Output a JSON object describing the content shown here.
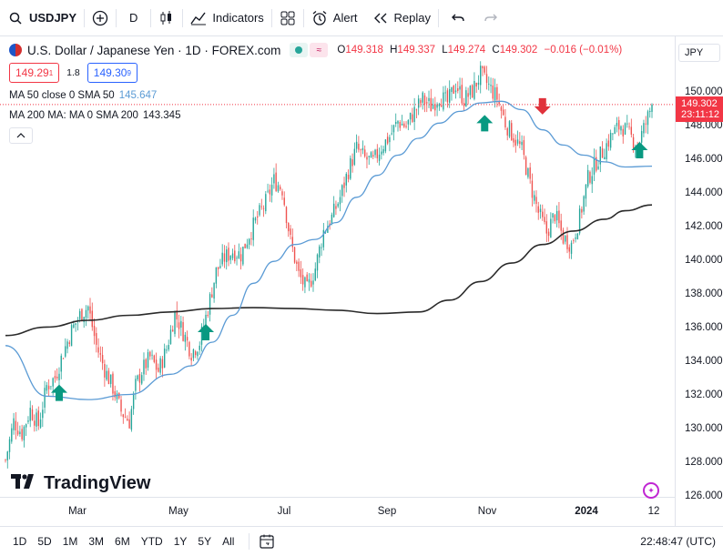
{
  "toolbar": {
    "symbol": "USDJPY",
    "interval": "D",
    "indicators_label": "Indicators",
    "alert_label": "Alert",
    "replay_label": "Replay"
  },
  "legend": {
    "title": "U.S. Dollar / Japanese Yen · 1D · FOREX.com",
    "open_label": "O",
    "open": "149.318",
    "high_label": "H",
    "high": "149.337",
    "low_label": "L",
    "low": "149.274",
    "close_label": "C",
    "close": "149.302",
    "change": "−0.016 (−0.01%)",
    "bid": "149.29",
    "bid_sup": "1",
    "spread": "1.8",
    "ask": "149.30",
    "ask_sup": "9",
    "ma50_label": "MA 50 close 0 SMA 50",
    "ma50_value": "145.647",
    "ma200_label": "MA 200 MA: MA 0 SMA 200",
    "ma200_value": "143.345"
  },
  "price_scale": {
    "currency": "JPY",
    "current_price": "149.302",
    "countdown": "23:11:12"
  },
  "time_scale": {
    "labels": [
      "Mar",
      "May",
      "Jul",
      "Sep",
      "Nov",
      "2024",
      "12"
    ]
  },
  "bottom_bar": {
    "ranges": [
      "1D",
      "5D",
      "1M",
      "3M",
      "6M",
      "YTD",
      "1Y",
      "5Y",
      "All"
    ],
    "clock": "22:48:47 (UTC)"
  },
  "branding": {
    "logo_text": "TradingView"
  },
  "colors": {
    "up": "#26a69a",
    "down": "#ef5350",
    "ma50": "#5b9bd5",
    "ma200": "#2a2a2a",
    "buy_arrow": "#089981",
    "sell_arrow": "#e0323b"
  },
  "chart_data": {
    "type": "candlestick",
    "symbol": "USDJPY",
    "y_ticks": [
      126,
      128,
      130,
      132,
      134,
      136,
      138,
      140,
      142,
      144,
      146,
      148,
      150
    ],
    "ylim": [
      125.5,
      152
    ],
    "x_labels": [
      "Mar",
      "May",
      "Jul",
      "Sep",
      "Nov",
      "2024",
      "12"
    ],
    "grid": false,
    "close_path": [
      [
        0,
        128.2
      ],
      [
        4,
        130.5
      ],
      [
        8,
        129.8
      ],
      [
        12,
        131.2
      ],
      [
        16,
        130.3
      ],
      [
        20,
        132.6
      ],
      [
        24,
        133.1
      ],
      [
        28,
        134.6
      ],
      [
        32,
        135.9
      ],
      [
        36,
        136.8
      ],
      [
        40,
        137.3
      ],
      [
        44,
        135.0
      ],
      [
        48,
        133.6
      ],
      [
        52,
        132.5
      ],
      [
        56,
        131.1
      ],
      [
        60,
        130.5
      ],
      [
        63,
        132.6
      ],
      [
        66,
        133.5
      ],
      [
        70,
        134.3
      ],
      [
        74,
        133.5
      ],
      [
        78,
        134.8
      ],
      [
        82,
        136.9
      ],
      [
        86,
        135.8
      ],
      [
        90,
        134.6
      ],
      [
        94,
        135.2
      ],
      [
        98,
        137.2
      ],
      [
        102,
        139.4
      ],
      [
        106,
        140.2
      ],
      [
        110,
        140.6
      ],
      [
        114,
        140.4
      ],
      [
        118,
        141.6
      ],
      [
        122,
        142.6
      ],
      [
        126,
        143.5
      ],
      [
        130,
        144.8
      ],
      [
        134,
        144.3
      ],
      [
        138,
        141.2
      ],
      [
        142,
        139.2
      ],
      [
        146,
        138.3
      ],
      [
        150,
        139.6
      ],
      [
        154,
        141.8
      ],
      [
        158,
        142.6
      ],
      [
        162,
        143.8
      ],
      [
        166,
        145.4
      ],
      [
        170,
        146.7
      ],
      [
        174,
        146.1
      ],
      [
        178,
        145.9
      ],
      [
        182,
        146.8
      ],
      [
        186,
        147.4
      ],
      [
        190,
        148.3
      ],
      [
        194,
        148.0
      ],
      [
        198,
        148.9
      ],
      [
        202,
        149.6
      ],
      [
        206,
        149.2
      ],
      [
        210,
        149.8
      ],
      [
        214,
        149.4
      ],
      [
        218,
        150.5
      ],
      [
        222,
        149.6
      ],
      [
        226,
        150.1
      ],
      [
        230,
        151.1
      ],
      [
        234,
        150.4
      ],
      [
        238,
        149.7
      ],
      [
        242,
        148.2
      ],
      [
        246,
        147.4
      ],
      [
        250,
        146.6
      ],
      [
        254,
        144.6
      ],
      [
        258,
        142.9
      ],
      [
        262,
        141.7
      ],
      [
        266,
        142.8
      ],
      [
        270,
        141.4
      ],
      [
        274,
        141.0
      ],
      [
        278,
        142.6
      ],
      [
        282,
        144.9
      ],
      [
        286,
        145.9
      ],
      [
        290,
        146.7
      ],
      [
        294,
        147.6
      ],
      [
        298,
        148.1
      ],
      [
        302,
        147.5
      ],
      [
        306,
        146.9
      ],
      [
        310,
        148.2
      ],
      [
        313,
        149.3
      ]
    ],
    "n_candles": 314,
    "ma50_path": [
      [
        0,
        135.0
      ],
      [
        20,
        132.0
      ],
      [
        40,
        131.8
      ],
      [
        60,
        132.1
      ],
      [
        80,
        133.3
      ],
      [
        90,
        133.8
      ],
      [
        100,
        135.2
      ],
      [
        110,
        136.8
      ],
      [
        120,
        138.7
      ],
      [
        130,
        140.0
      ],
      [
        140,
        141.0
      ],
      [
        150,
        141.3
      ],
      [
        160,
        142.3
      ],
      [
        170,
        143.8
      ],
      [
        180,
        145.1
      ],
      [
        190,
        146.3
      ],
      [
        200,
        147.3
      ],
      [
        210,
        148.2
      ],
      [
        220,
        148.9
      ],
      [
        230,
        149.4
      ],
      [
        240,
        149.5
      ],
      [
        250,
        149.0
      ],
      [
        260,
        147.8
      ],
      [
        270,
        146.9
      ],
      [
        280,
        146.3
      ],
      [
        290,
        145.9
      ],
      [
        300,
        145.6
      ],
      [
        313,
        145.65
      ]
    ],
    "ma200_path": [
      [
        0,
        135.6
      ],
      [
        20,
        136.1
      ],
      [
        40,
        136.5
      ],
      [
        60,
        136.8
      ],
      [
        80,
        137.0
      ],
      [
        100,
        137.2
      ],
      [
        120,
        137.25
      ],
      [
        140,
        137.2
      ],
      [
        160,
        137.1
      ],
      [
        180,
        136.9
      ],
      [
        200,
        137.0
      ],
      [
        215,
        137.7
      ],
      [
        230,
        138.8
      ],
      [
        245,
        139.9
      ],
      [
        260,
        141.0
      ],
      [
        275,
        141.8
      ],
      [
        290,
        142.5
      ],
      [
        300,
        143.0
      ],
      [
        313,
        143.35
      ]
    ],
    "signals": [
      {
        "type": "buy",
        "index": 26,
        "price": 132.2
      },
      {
        "type": "buy",
        "index": 97,
        "price": 135.8
      },
      {
        "type": "buy",
        "index": 232,
        "price": 148.2
      },
      {
        "type": "sell",
        "index": 260,
        "price": 149.2
      },
      {
        "type": "buy",
        "index": 307,
        "price": 146.6
      }
    ]
  }
}
